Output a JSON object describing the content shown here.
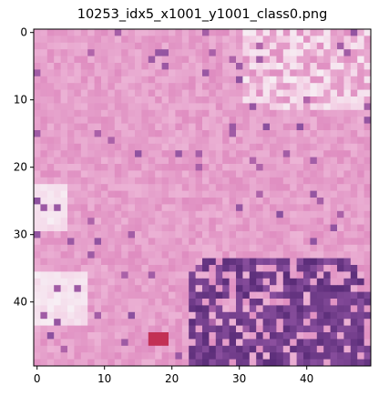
{
  "title": "10253_idx5_x1001_y1001_class0.png",
  "image": {
    "rows": 50,
    "cols": 50,
    "palette": {
      "base": "#d97ab6",
      "light": "#f2c6e0",
      "pale": "#f7eef4",
      "purple": "#8a4f9e",
      "dark": "#5a2c78",
      "red": "#c23055"
    }
  },
  "chart_data": {
    "type": "heatmap",
    "title": "10253_idx5_x1001_y1001_class0.png",
    "xlabel": "",
    "ylabel": "",
    "xlim": [
      -0.5,
      49.5
    ],
    "ylim": [
      49.5,
      -0.5
    ],
    "x_ticks": [
      0,
      10,
      20,
      30,
      40
    ],
    "y_ticks": [
      0,
      10,
      20,
      30,
      40
    ],
    "grid": false
  }
}
